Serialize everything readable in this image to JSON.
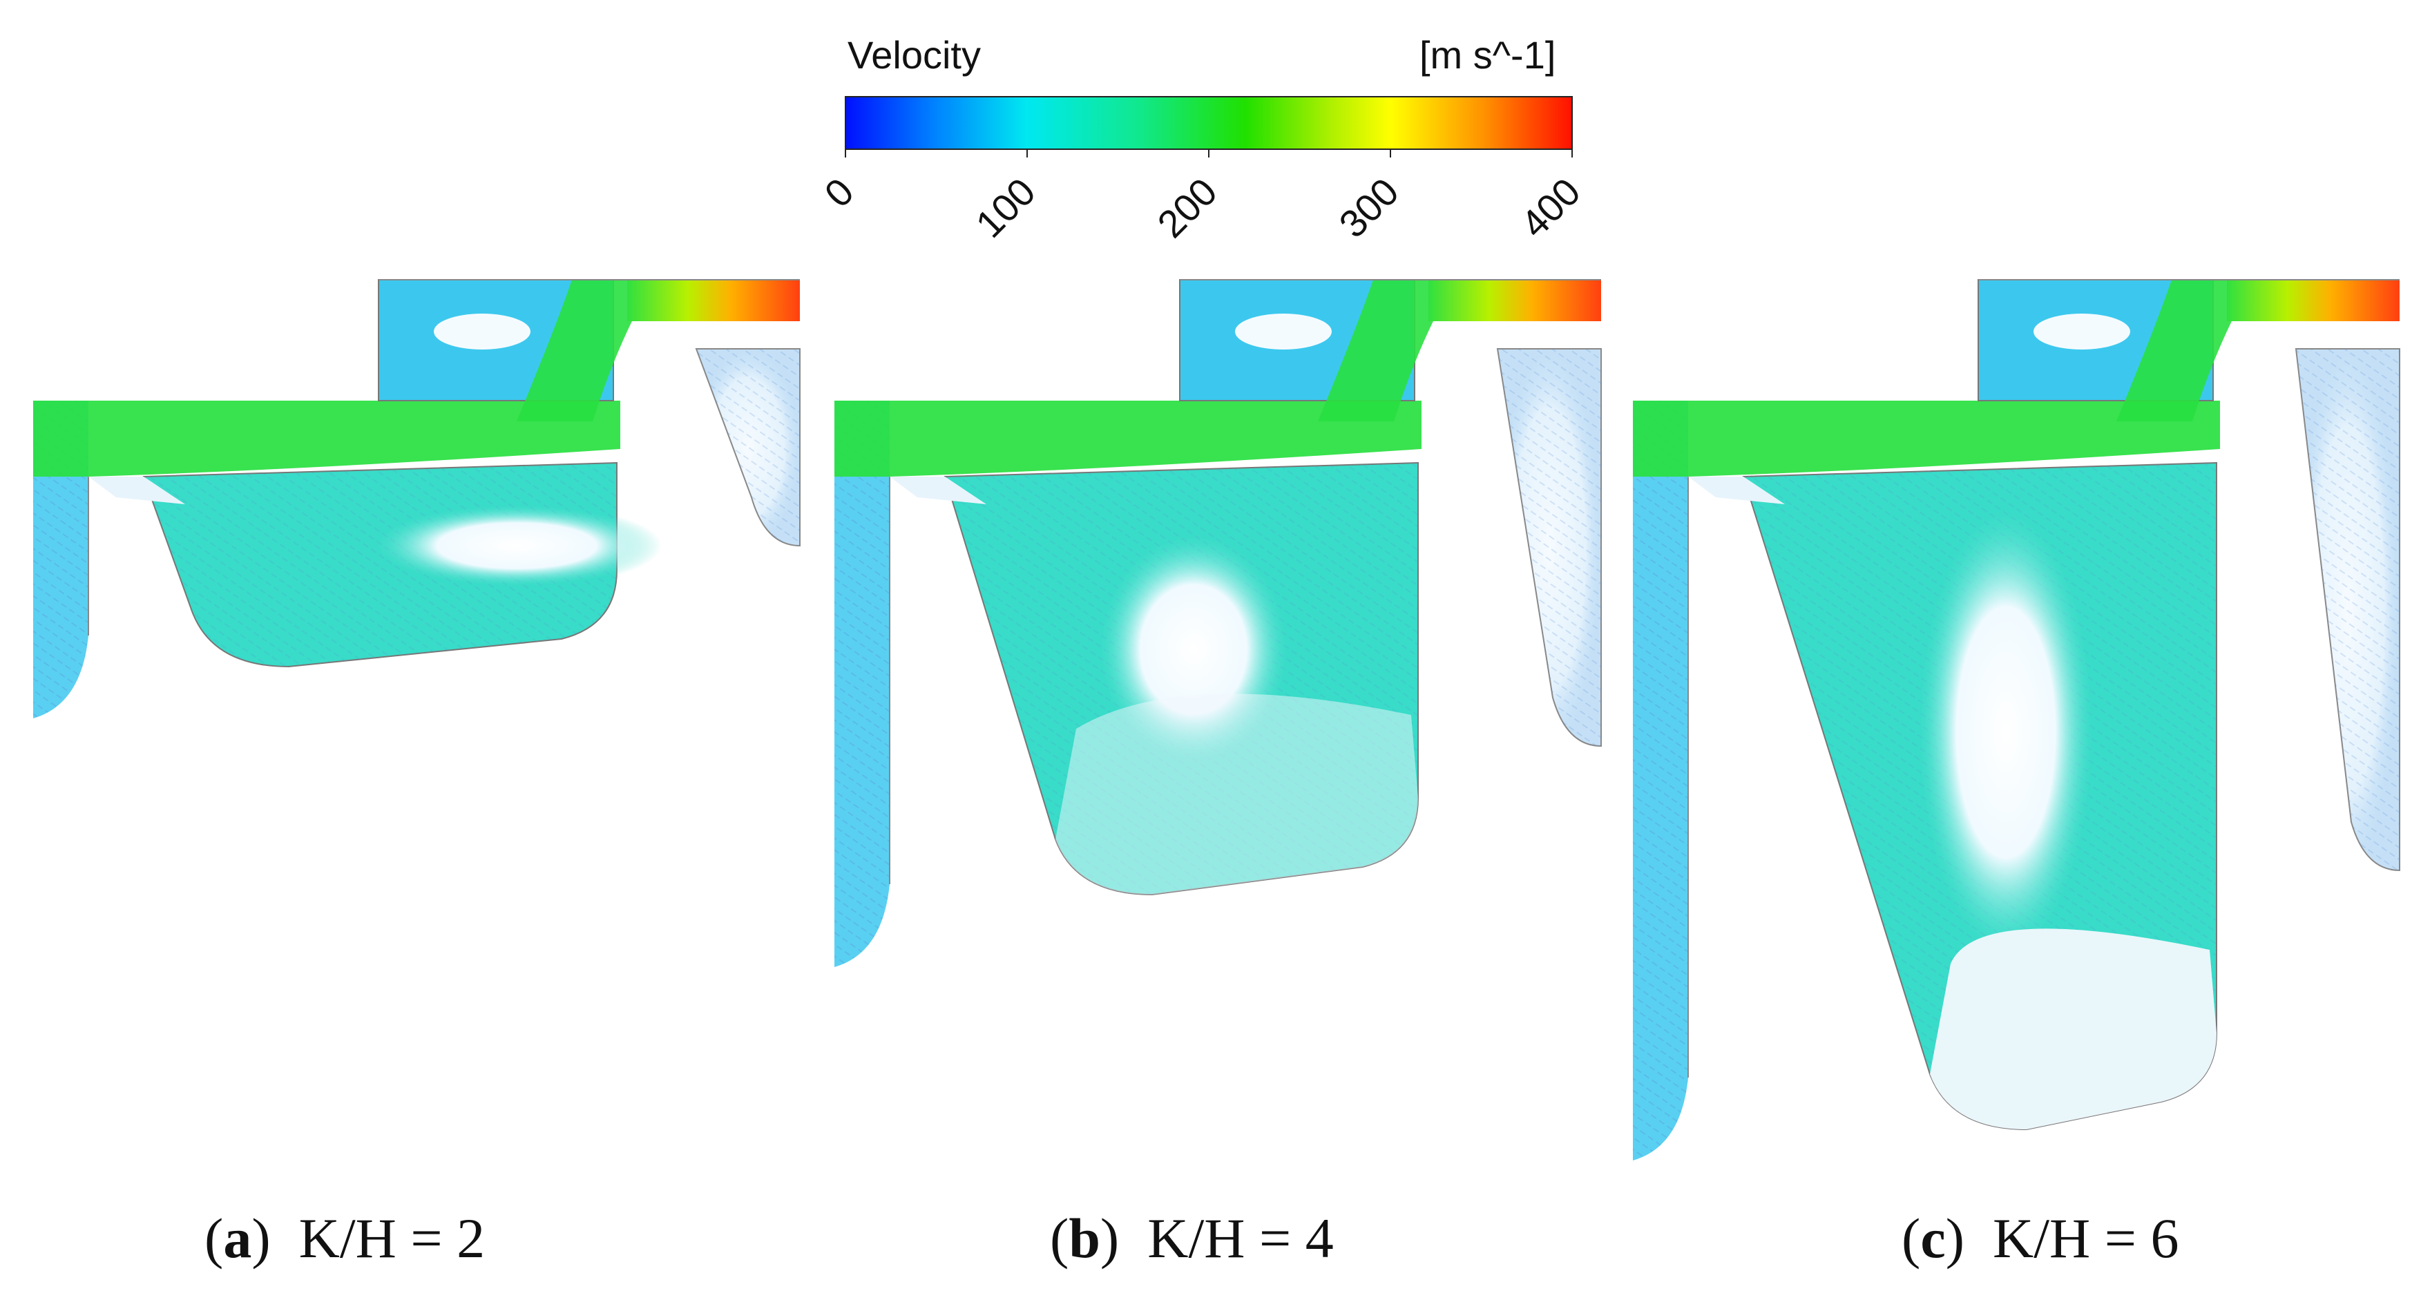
{
  "colorbar": {
    "title": "Velocity",
    "unit": "[m s^-1]",
    "ticks": [
      0,
      100,
      200,
      300,
      400
    ],
    "range": [
      0,
      400
    ],
    "colors": [
      "#0010ff",
      "#00a0ff",
      "#00e8e8",
      "#10e080",
      "#20e000",
      "#a8f000",
      "#ffff00",
      "#ff9000",
      "#ff1000"
    ]
  },
  "panels": [
    {
      "letter": "a",
      "caption_text": "K/H = 2",
      "colors": {
        "inlet": "#ff5010",
        "jet": "#28e040",
        "cavity": "#38dcc8",
        "vortex_core": "#f4fbff",
        "wall_vortex": "#3cc8ee"
      }
    },
    {
      "letter": "b",
      "caption_text": "K/H = 4",
      "colors": {
        "inlet": "#ff5010",
        "jet": "#28e040",
        "cavity": "#38dcc8",
        "vortex_core": "#f4fbff",
        "wall_vortex": "#3cc8ee"
      }
    },
    {
      "letter": "c",
      "caption_text": "K/H = 6",
      "colors": {
        "inlet": "#ff5010",
        "jet": "#28e040",
        "cavity": "#38dcc8",
        "vortex_core": "#f4fbff",
        "wall_vortex": "#3cc8ee"
      }
    }
  ]
}
